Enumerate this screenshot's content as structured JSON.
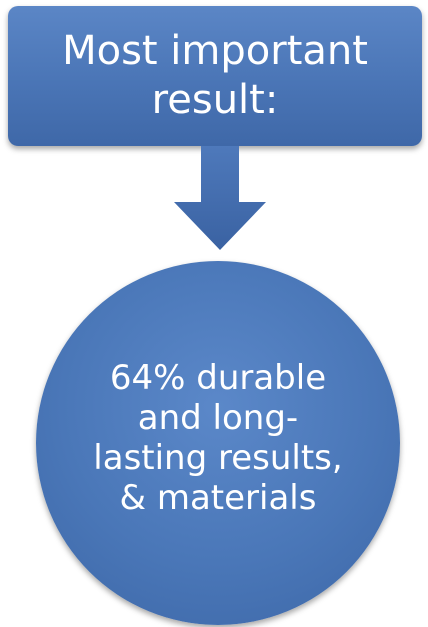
{
  "header": {
    "title": "Most important result:"
  },
  "result": {
    "text": "64% durable and long-lasting results, & materials"
  },
  "colors": {
    "box_fill": "#4a75b6",
    "circle_fill": "#4a77b8",
    "arrow_fill": "#3f6aab",
    "text": "#ffffff"
  }
}
